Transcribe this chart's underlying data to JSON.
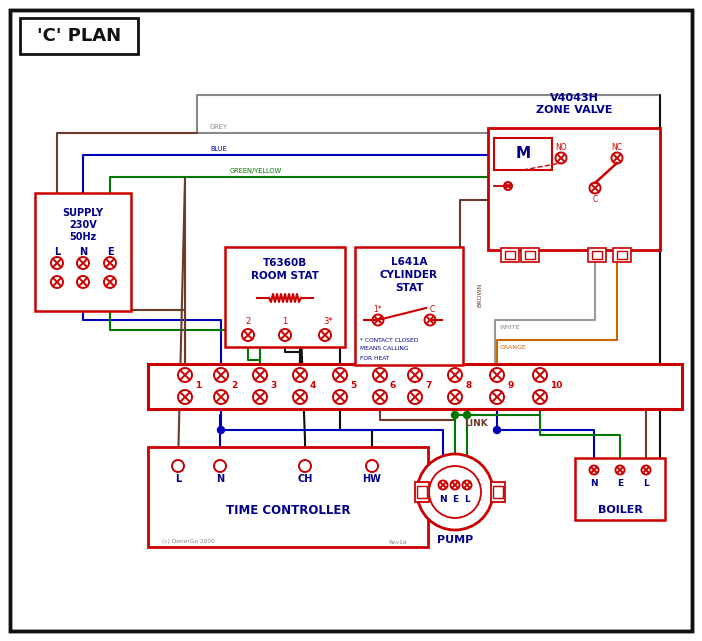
{
  "title": "'C' PLAN",
  "bg": "#ffffff",
  "red": "#cc0000",
  "blue": "#0000bb",
  "green": "#007700",
  "brown": "#6b3a2a",
  "grey": "#888888",
  "orange": "#cc6600",
  "black": "#111111",
  "dblue": "#00008b",
  "supply_title": [
    "SUPPLY",
    "230V",
    "50Hz"
  ],
  "supply_labels": [
    "L",
    "N",
    "E"
  ],
  "zone_title": [
    "V4043H",
    "ZONE VALVE"
  ],
  "room_title": [
    "T6360B",
    "ROOM STAT"
  ],
  "cyl_title": [
    "L641A",
    "CYLINDER",
    "STAT"
  ],
  "terminal_labels": [
    "1",
    "2",
    "3",
    "4",
    "5",
    "6",
    "7",
    "8",
    "9",
    "10"
  ],
  "time_labels": [
    "L",
    "N",
    "CH",
    "HW"
  ],
  "pump_labels": [
    "N",
    "E",
    "L"
  ],
  "boiler_labels": [
    "N",
    "E",
    "L"
  ],
  "link_text": "LINK",
  "note": [
    "* CONTACT CLOSED",
    "MEANS CALLING",
    "FOR HEAT"
  ],
  "copyright": "(c) DenerGo 2000",
  "rev": "Rev1d",
  "wire_labels": {
    "grey": "GREY",
    "blue": "BLUE",
    "gy": "GREEN/YELLOW",
    "brown": "BROWN",
    "white": "WHITE",
    "orange": "ORANGE"
  }
}
